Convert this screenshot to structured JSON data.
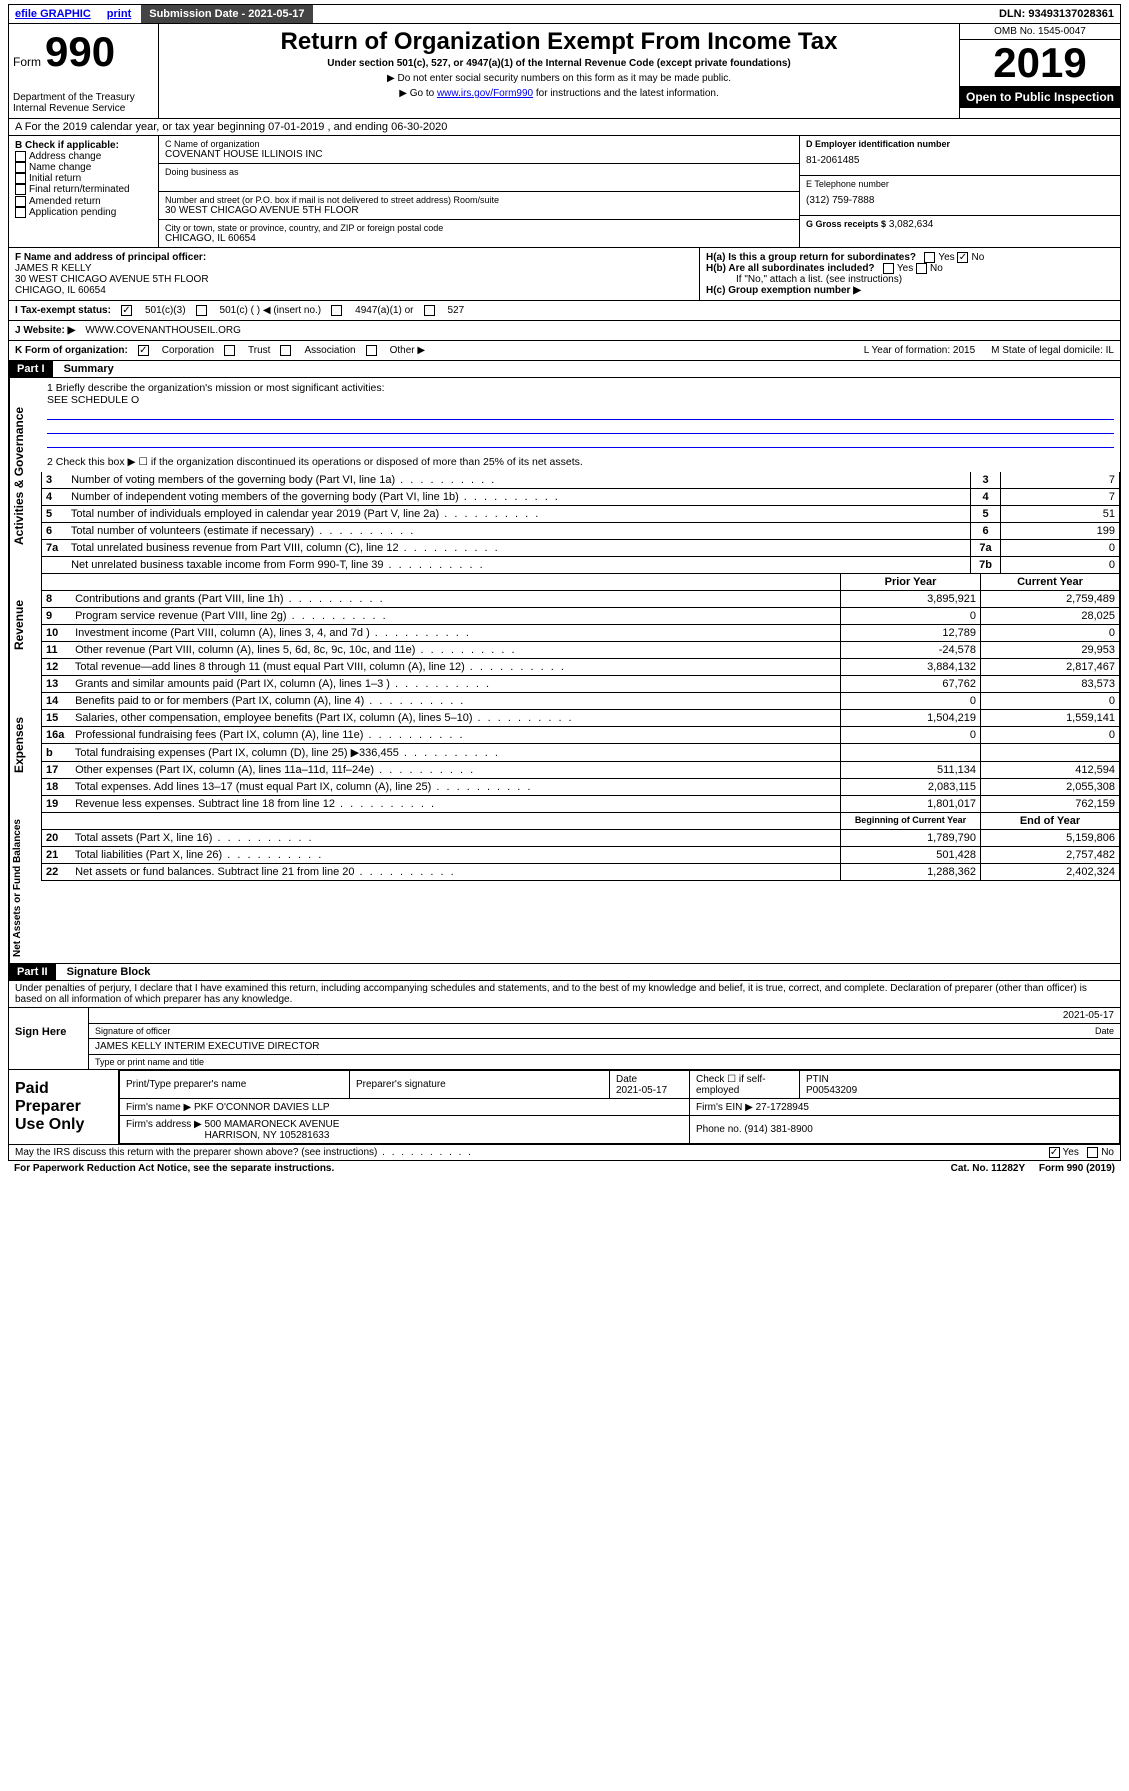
{
  "topbar": {
    "efile": "efile GRAPHIC",
    "print": "print",
    "submission": "Submission Date - 2021-05-17",
    "dln": "DLN: 93493137028361"
  },
  "header": {
    "form_prefix": "Form",
    "form_no": "990",
    "dept": "Department of the Treasury\nInternal Revenue Service",
    "title": "Return of Organization Exempt From Income Tax",
    "sub": "Under section 501(c), 527, or 4947(a)(1) of the Internal Revenue Code (except private foundations)",
    "note1": "▶ Do not enter social security numbers on this form as it may be made public.",
    "note2_pre": "▶ Go to ",
    "note2_link": "www.irs.gov/Form990",
    "note2_post": " for instructions and the latest information.",
    "omb": "OMB No. 1545-0047",
    "year": "2019",
    "open": "Open to Public Inspection"
  },
  "rowA": "A  For the 2019 calendar year, or tax year beginning 07-01-2019    , and ending 06-30-2020",
  "colB": {
    "title": "B Check if applicable:",
    "items": [
      "Address change",
      "Name change",
      "Initial return",
      "Final return/terminated",
      "Amended return",
      "Application pending"
    ]
  },
  "colC": {
    "name_lbl": "C Name of organization",
    "name": "COVENANT HOUSE ILLINOIS INC",
    "dba_lbl": "Doing business as",
    "addr_lbl": "Number and street (or P.O. box if mail is not delivered to street address)     Room/suite",
    "addr": "30 WEST CHICAGO AVENUE 5TH FLOOR",
    "city_lbl": "City or town, state or province, country, and ZIP or foreign postal code",
    "city": "CHICAGO, IL  60654"
  },
  "colD": {
    "ein_lbl": "D Employer identification number",
    "ein": "81-2061485",
    "tel_lbl": "E Telephone number",
    "tel": "(312) 759-7888",
    "gross_lbl": "G Gross receipts $",
    "gross": "3,082,634"
  },
  "rowF": {
    "lbl": "F  Name and address of principal officer:",
    "name": "JAMES R KELLY",
    "addr": "30 WEST CHICAGO AVENUE 5TH FLOOR\nCHICAGO, IL  60654"
  },
  "rowH": {
    "a": "H(a)  Is this a group return for subordinates?",
    "b": "H(b)  Are all subordinates included?",
    "b_note": "If \"No,\" attach a list. (see instructions)",
    "c": "H(c)  Group exemption number ▶"
  },
  "rowI": {
    "lbl": "I    Tax-exempt status:",
    "c1": "501(c)(3)",
    "c2": "501(c) (   ) ◀ (insert no.)",
    "c3": "4947(a)(1) or",
    "c4": "527"
  },
  "rowJ": {
    "lbl": "J   Website: ▶",
    "val": "WWW.COVENANTHOUSEIL.ORG"
  },
  "rowK": {
    "lbl": "K Form of organization:",
    "opts": [
      "Corporation",
      "Trust",
      "Association",
      "Other ▶"
    ],
    "l": "L Year of formation: 2015",
    "m": "M State of legal domicile: IL"
  },
  "part1": {
    "hdr": "Part I",
    "title": "Summary"
  },
  "summary": {
    "line1_lbl": "1   Briefly describe the organization's mission or most significant activities:",
    "line1_val": "SEE SCHEDULE O",
    "line2": "2   Check this box ▶ ☐  if the organization discontinued its operations or disposed of more than 25% of its net assets.",
    "governance_rows": [
      {
        "n": "3",
        "txt": "Number of voting members of the governing body (Part VI, line 1a)",
        "k": "3",
        "v": "7"
      },
      {
        "n": "4",
        "txt": "Number of independent voting members of the governing body (Part VI, line 1b)",
        "k": "4",
        "v": "7"
      },
      {
        "n": "5",
        "txt": "Total number of individuals employed in calendar year 2019 (Part V, line 2a)",
        "k": "5",
        "v": "51"
      },
      {
        "n": "6",
        "txt": "Total number of volunteers (estimate if necessary)",
        "k": "6",
        "v": "199"
      },
      {
        "n": "7a",
        "txt": "Total unrelated business revenue from Part VIII, column (C), line 12",
        "k": "7a",
        "v": "0"
      },
      {
        "n": "",
        "txt": "Net unrelated business taxable income from Form 990-T, line 39",
        "k": "7b",
        "v": "0"
      }
    ],
    "col_hdr_prior": "Prior Year",
    "col_hdr_curr": "Current Year",
    "revenue_rows": [
      {
        "n": "8",
        "txt": "Contributions and grants (Part VIII, line 1h)",
        "p": "3,895,921",
        "c": "2,759,489"
      },
      {
        "n": "9",
        "txt": "Program service revenue (Part VIII, line 2g)",
        "p": "0",
        "c": "28,025"
      },
      {
        "n": "10",
        "txt": "Investment income (Part VIII, column (A), lines 3, 4, and 7d )",
        "p": "12,789",
        "c": "0"
      },
      {
        "n": "11",
        "txt": "Other revenue (Part VIII, column (A), lines 5, 6d, 8c, 9c, 10c, and 11e)",
        "p": "-24,578",
        "c": "29,953"
      },
      {
        "n": "12",
        "txt": "Total revenue—add lines 8 through 11 (must equal Part VIII, column (A), line 12)",
        "p": "3,884,132",
        "c": "2,817,467"
      }
    ],
    "expense_rows": [
      {
        "n": "13",
        "txt": "Grants and similar amounts paid (Part IX, column (A), lines 1–3 )",
        "p": "67,762",
        "c": "83,573"
      },
      {
        "n": "14",
        "txt": "Benefits paid to or for members (Part IX, column (A), line 4)",
        "p": "0",
        "c": "0"
      },
      {
        "n": "15",
        "txt": "Salaries, other compensation, employee benefits (Part IX, column (A), lines 5–10)",
        "p": "1,504,219",
        "c": "1,559,141"
      },
      {
        "n": "16a",
        "txt": "Professional fundraising fees (Part IX, column (A), line 11e)",
        "p": "0",
        "c": "0"
      },
      {
        "n": "b",
        "txt": "Total fundraising expenses (Part IX, column (D), line 25) ▶336,455",
        "p": "",
        "c": ""
      },
      {
        "n": "17",
        "txt": "Other expenses (Part IX, column (A), lines 11a–11d, 11f–24e)",
        "p": "511,134",
        "c": "412,594"
      },
      {
        "n": "18",
        "txt": "Total expenses. Add lines 13–17 (must equal Part IX, column (A), line 25)",
        "p": "2,083,115",
        "c": "2,055,308"
      },
      {
        "n": "19",
        "txt": "Revenue less expenses. Subtract line 18 from line 12",
        "p": "1,801,017",
        "c": "762,159"
      }
    ],
    "col_hdr_beg": "Beginning of Current Year",
    "col_hdr_end": "End of Year",
    "net_rows": [
      {
        "n": "20",
        "txt": "Total assets (Part X, line 16)",
        "p": "1,789,790",
        "c": "5,159,806"
      },
      {
        "n": "21",
        "txt": "Total liabilities (Part X, line 26)",
        "p": "501,428",
        "c": "2,757,482"
      },
      {
        "n": "22",
        "txt": "Net assets or fund balances. Subtract line 21 from line 20",
        "p": "1,288,362",
        "c": "2,402,324"
      }
    ]
  },
  "vert_labels": {
    "gov": "Activities & Governance",
    "rev": "Revenue",
    "exp": "Expenses",
    "net": "Net Assets or Fund Balances"
  },
  "part2": {
    "hdr": "Part II",
    "title": "Signature Block"
  },
  "perjury": "Under penalties of perjury, I declare that I have examined this return, including accompanying schedules and statements, and to the best of my knowledge and belief, it is true, correct, and complete. Declaration of preparer (other than officer) is based on all information of which preparer has any knowledge.",
  "sign": {
    "left": "Sign Here",
    "sig_lbl": "Signature of officer",
    "date": "2021-05-17",
    "date_lbl": "Date",
    "name": "JAMES KELLY INTERIM EXECUTIVE DIRECTOR",
    "name_lbl": "Type or print name and title"
  },
  "paid": {
    "left": "Paid Preparer Use Only",
    "h1": "Print/Type preparer's name",
    "h2": "Preparer's signature",
    "h3_lbl": "Date",
    "h3": "2021-05-17",
    "h4": "Check ☐ if self-employed",
    "h5_lbl": "PTIN",
    "h5": "P00543209",
    "firm_lbl": "Firm's name      ▶",
    "firm": "PKF O'CONNOR DAVIES LLP",
    "ein_lbl": "Firm's EIN ▶",
    "ein": "27-1728945",
    "addr_lbl": "Firm's address ▶",
    "addr": "500 MAMARONECK AVENUE\nHARRISON, NY  105281633",
    "phone_lbl": "Phone no.",
    "phone": "(914) 381-8900"
  },
  "discuss": "May the IRS discuss this return with the preparer shown above? (see instructions)",
  "foot": {
    "left": "For Paperwork Reduction Act Notice, see the separate instructions.",
    "mid": "Cat. No. 11282Y",
    "right": "Form 990 (2019)"
  },
  "yes": "Yes",
  "no": "No"
}
